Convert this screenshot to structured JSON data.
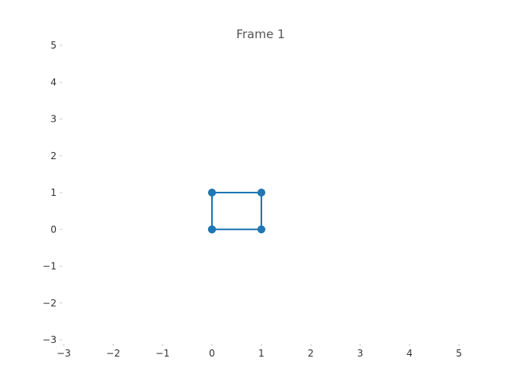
{
  "chart_data": {
    "type": "line",
    "title": "Frame 1",
    "xlabel": "",
    "ylabel": "",
    "xlim": [
      -3,
      5
    ],
    "ylim": [
      -3,
      5
    ],
    "xticks": [
      -3,
      -2,
      -1,
      0,
      1,
      2,
      3,
      4,
      5
    ],
    "yticks": [
      -3,
      -2,
      -1,
      0,
      1,
      2,
      3,
      4,
      5
    ],
    "xtick_labels": [
      "−3",
      "−2",
      "−1",
      "0",
      "1",
      "2",
      "3",
      "4",
      "5"
    ],
    "ytick_labels": [
      "−3",
      "−2",
      "−1",
      "0",
      "1",
      "2",
      "3",
      "4",
      "5"
    ],
    "grid": false,
    "series": [
      {
        "x": [
          0,
          1,
          1,
          0,
          0
        ],
        "y": [
          0,
          0,
          1,
          1,
          0
        ],
        "color": "#1f77b4",
        "marker": "circle"
      }
    ]
  }
}
